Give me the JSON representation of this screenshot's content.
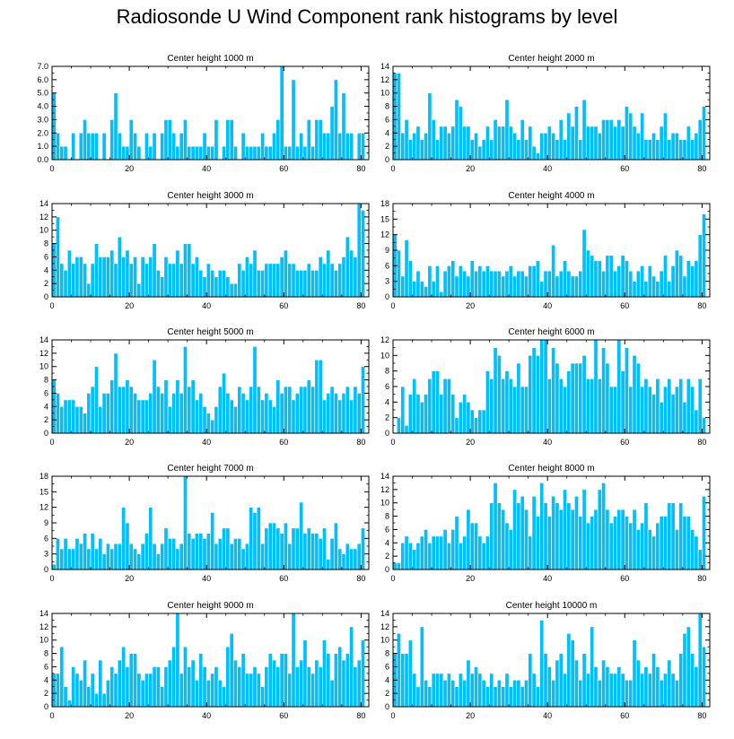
{
  "title": "Radiosonde U Wind Component rank histograms by level",
  "style": {
    "bar_color": "#00bfff",
    "bar_edge": "#ffffff",
    "axis_color": "#000000"
  },
  "chart_data": [
    {
      "type": "bar",
      "title": "Center height 1000 m",
      "xlabel": "",
      "ylabel": "",
      "xlim": [
        0,
        82
      ],
      "ylim": [
        0,
        7
      ],
      "xticks": [
        0,
        20,
        40,
        60,
        80
      ],
      "xtick_labels": [
        "0",
        "20",
        "40",
        "60",
        "80"
      ],
      "yticks": [
        0,
        1,
        2,
        3,
        4,
        5,
        6,
        7
      ],
      "ytick_labels": [
        "0.0",
        "1.0",
        "2.0",
        "3.0",
        "4.0",
        "5.0",
        "6.0",
        "7.0"
      ],
      "values": [
        5,
        2,
        1,
        1,
        0,
        2,
        0,
        2,
        3,
        2,
        2,
        2,
        0,
        2,
        0,
        3,
        5,
        2,
        1,
        1,
        3,
        2,
        1,
        0,
        2,
        1,
        2,
        0,
        2,
        3,
        3,
        2,
        1,
        2,
        3,
        1,
        1,
        1,
        1,
        2,
        1,
        1,
        3,
        0,
        1,
        3,
        3,
        1,
        0,
        2,
        1,
        1,
        1,
        1,
        2,
        1,
        1,
        2,
        3,
        7,
        1,
        1,
        6,
        1,
        2,
        1,
        3,
        1,
        3,
        3,
        2,
        2,
        4,
        6,
        2,
        5,
        2,
        2,
        0,
        2,
        2
      ]
    },
    {
      "type": "bar",
      "title": "Center height 2000 m",
      "xlabel": "",
      "ylabel": "",
      "xlim": [
        0,
        82
      ],
      "ylim": [
        0,
        14
      ],
      "xticks": [
        0,
        20,
        40,
        60,
        80
      ],
      "xtick_labels": [
        "0",
        "20",
        "40",
        "60",
        "80"
      ],
      "yticks": [
        0,
        2,
        4,
        6,
        8,
        10,
        12,
        14
      ],
      "ytick_labels": [
        "0",
        "2",
        "4",
        "6",
        "8",
        "10",
        "12",
        "14"
      ],
      "values": [
        13,
        13,
        4,
        6,
        3,
        4,
        5,
        3,
        4,
        10,
        6,
        3,
        5,
        5,
        4,
        5,
        9,
        8,
        5,
        5,
        3,
        4,
        2,
        3,
        5,
        3,
        6,
        5,
        5,
        9,
        5,
        4,
        3,
        6,
        3,
        5,
        2,
        1,
        4,
        4,
        5,
        4,
        3,
        6,
        3,
        7,
        5,
        8,
        3,
        9,
        5,
        5,
        5,
        4,
        6,
        6,
        6,
        5,
        6,
        5,
        8,
        7,
        5,
        4,
        7,
        3,
        3,
        4,
        3,
        5,
        7,
        3,
        4,
        4,
        3,
        3,
        5,
        3,
        4,
        6,
        8
      ]
    },
    {
      "type": "bar",
      "title": "Center height 3000 m",
      "xlabel": "",
      "ylabel": "",
      "xlim": [
        0,
        82
      ],
      "ylim": [
        0,
        14
      ],
      "xticks": [
        0,
        20,
        40,
        60,
        80
      ],
      "xtick_labels": [
        "0",
        "20",
        "40",
        "60",
        "80"
      ],
      "yticks": [
        0,
        2,
        4,
        6,
        8,
        10,
        12,
        14
      ],
      "ytick_labels": [
        "0",
        "2",
        "4",
        "6",
        "8",
        "10",
        "12",
        "14"
      ],
      "values": [
        8,
        12,
        5,
        4,
        7,
        5,
        6,
        6,
        5,
        2,
        5,
        8,
        6,
        6,
        6,
        7,
        5,
        9,
        6,
        7,
        5,
        6,
        2,
        6,
        5,
        6,
        8,
        4,
        3,
        6,
        5,
        5,
        7,
        5,
        8,
        8,
        5,
        6,
        4,
        3,
        5,
        4,
        3,
        4,
        4,
        3,
        2,
        2,
        5,
        4,
        6,
        5,
        7,
        4,
        4,
        5,
        5,
        5,
        5,
        6,
        7,
        5,
        5,
        4,
        4,
        4,
        5,
        4,
        4,
        6,
        5,
        7,
        5,
        4,
        5,
        6,
        9,
        7,
        6,
        14,
        13
      ]
    },
    {
      "type": "bar",
      "title": "Center height 4000 m",
      "xlabel": "",
      "ylabel": "",
      "xlim": [
        0,
        82
      ],
      "ylim": [
        0,
        18
      ],
      "xticks": [
        0,
        20,
        40,
        60,
        80
      ],
      "xtick_labels": [
        "0",
        "20",
        "40",
        "60",
        "80"
      ],
      "yticks": [
        0,
        3,
        6,
        9,
        12,
        15,
        18
      ],
      "ytick_labels": [
        "0",
        "3",
        "6",
        "9",
        "12",
        "15",
        "18"
      ],
      "values": [
        12,
        9,
        4,
        11,
        7,
        3,
        5,
        3,
        2,
        6,
        3,
        6,
        1,
        5,
        6,
        7,
        4,
        6,
        5,
        4,
        7,
        5,
        6,
        5,
        6,
        5,
        5,
        5,
        4,
        5,
        6,
        4,
        5,
        5,
        4,
        6,
        6,
        7,
        3,
        5,
        5,
        10,
        4,
        5,
        7,
        5,
        4,
        4,
        5,
        13,
        9,
        8,
        7,
        7,
        5,
        8,
        8,
        5,
        6,
        8,
        7,
        5,
        3,
        5,
        6,
        3,
        6,
        4,
        3,
        5,
        8,
        3,
        6,
        9,
        8,
        4,
        7,
        6,
        7,
        12,
        16
      ]
    },
    {
      "type": "bar",
      "title": "Center height 5000 m",
      "xlabel": "",
      "ylabel": "",
      "xlim": [
        0,
        82
      ],
      "ylim": [
        0,
        14
      ],
      "xticks": [
        0,
        20,
        40,
        60,
        80
      ],
      "xtick_labels": [
        "0",
        "20",
        "40",
        "60",
        "80"
      ],
      "yticks": [
        0,
        2,
        4,
        6,
        8,
        10,
        12,
        14
      ],
      "ytick_labels": [
        "0",
        "2",
        "4",
        "6",
        "8",
        "10",
        "12",
        "14"
      ],
      "values": [
        8,
        6,
        4,
        5,
        5,
        5,
        4,
        4,
        3,
        6,
        7,
        10,
        4,
        6,
        6,
        8,
        12,
        7,
        7,
        8,
        7,
        6,
        5,
        5,
        5,
        6,
        11,
        7,
        6,
        8,
        4,
        6,
        8,
        6,
        13,
        7,
        8,
        5,
        6,
        4,
        3,
        2,
        4,
        7,
        9,
        6,
        5,
        4,
        7,
        6,
        5,
        7,
        13,
        7,
        5,
        6,
        5,
        4,
        8,
        6,
        7,
        7,
        5,
        6,
        7,
        7,
        8,
        7,
        11,
        11,
        5,
        6,
        7,
        6,
        5,
        6,
        7,
        5,
        7,
        6,
        10
      ]
    },
    {
      "type": "bar",
      "title": "Center height 6000 m",
      "xlabel": "",
      "ylabel": "",
      "xlim": [
        0,
        82
      ],
      "ylim": [
        0,
        12
      ],
      "xticks": [
        0,
        20,
        40,
        60,
        80
      ],
      "xtick_labels": [
        "0",
        "20",
        "40",
        "60",
        "80"
      ],
      "yticks": [
        0,
        2,
        4,
        6,
        8,
        10,
        12
      ],
      "ytick_labels": [
        "0",
        "2",
        "4",
        "6",
        "8",
        "10",
        "12"
      ],
      "values": [
        0,
        2,
        6,
        1,
        5,
        7,
        5,
        4,
        5,
        7,
        8,
        8,
        5,
        7,
        7,
        5,
        2,
        4,
        5,
        4,
        3,
        2,
        3,
        3,
        8,
        7,
        11,
        10,
        7,
        8,
        7,
        6,
        9,
        6,
        6,
        10,
        11,
        10,
        12,
        12,
        7,
        11,
        9,
        7,
        6,
        8,
        9,
        9,
        9,
        10,
        7,
        7,
        12,
        7,
        11,
        9,
        6,
        6,
        12,
        8,
        11,
        6,
        10,
        9,
        6,
        7,
        6,
        5,
        7,
        4,
        6,
        7,
        5,
        6,
        7,
        4,
        7,
        6,
        3,
        7,
        2
      ]
    },
    {
      "type": "bar",
      "title": "Center height 7000 m",
      "xlabel": "",
      "ylabel": "",
      "xlim": [
        0,
        82
      ],
      "ylim": [
        0,
        18
      ],
      "xticks": [
        0,
        20,
        40,
        60,
        80
      ],
      "xtick_labels": [
        "0",
        "20",
        "40",
        "60",
        "80"
      ],
      "yticks": [
        0,
        3,
        6,
        9,
        12,
        15,
        18
      ],
      "ytick_labels": [
        "0",
        "3",
        "6",
        "9",
        "12",
        "15",
        "18"
      ],
      "values": [
        1,
        6,
        4,
        6,
        4,
        4,
        6,
        5,
        7,
        4,
        7,
        4,
        6,
        3,
        5,
        4,
        5,
        5,
        12,
        9,
        5,
        4,
        3,
        5,
        7,
        12,
        5,
        3,
        5,
        8,
        6,
        6,
        4,
        5,
        18,
        7,
        6,
        7,
        7,
        6,
        7,
        11,
        5,
        6,
        8,
        8,
        5,
        6,
        6,
        4,
        5,
        12,
        11,
        12,
        5,
        8,
        9,
        9,
        8,
        7,
        9,
        5,
        8,
        8,
        13,
        7,
        8,
        7,
        7,
        6,
        8,
        2,
        6,
        9,
        4,
        3,
        5,
        4,
        4,
        5,
        8
      ]
    },
    {
      "type": "bar",
      "title": "Center height 8000 m",
      "xlabel": "",
      "ylabel": "",
      "xlim": [
        0,
        82
      ],
      "ylim": [
        0,
        14
      ],
      "xticks": [
        0,
        20,
        40,
        60,
        80
      ],
      "xtick_labels": [
        "0",
        "20",
        "40",
        "60",
        "80"
      ],
      "yticks": [
        0,
        2,
        4,
        6,
        8,
        10,
        12,
        14
      ],
      "ytick_labels": [
        "0",
        "2",
        "4",
        "6",
        "8",
        "10",
        "12",
        "14"
      ],
      "values": [
        1,
        1,
        4,
        5,
        4,
        3,
        4,
        5,
        6,
        4,
        5,
        5,
        5,
        6,
        4,
        6,
        8,
        4,
        5,
        9,
        7,
        7,
        5,
        4,
        5,
        10,
        13,
        10,
        9,
        7,
        6,
        12,
        10,
        11,
        9,
        5,
        11,
        8,
        13,
        10,
        8,
        11,
        10,
        9,
        12,
        10,
        9,
        11,
        8,
        12,
        7,
        8,
        9,
        12,
        13,
        9,
        7,
        8,
        9,
        9,
        8,
        7,
        9,
        6,
        7,
        10,
        6,
        5,
        7,
        8,
        8,
        10,
        10,
        6,
        10,
        8,
        8,
        6,
        5,
        3,
        11
      ]
    },
    {
      "type": "bar",
      "title": "Center height 9000 m",
      "xlabel": "",
      "ylabel": "",
      "xlim": [
        0,
        82
      ],
      "ylim": [
        0,
        14
      ],
      "xticks": [
        0,
        20,
        40,
        60,
        80
      ],
      "xtick_labels": [
        "0",
        "20",
        "40",
        "60",
        "80"
      ],
      "yticks": [
        0,
        2,
        4,
        6,
        8,
        10,
        12,
        14
      ],
      "ytick_labels": [
        "0",
        "2",
        "4",
        "6",
        "8",
        "10",
        "12",
        "14"
      ],
      "values": [
        5,
        5,
        9,
        3,
        1,
        6,
        5,
        4,
        7,
        3,
        5,
        2,
        7,
        2,
        4,
        6,
        5,
        7,
        9,
        6,
        8,
        8,
        5,
        4,
        5,
        5,
        6,
        6,
        3,
        6,
        7,
        9,
        14,
        5,
        9,
        6,
        7,
        4,
        8,
        6,
        4,
        5,
        6,
        4,
        3,
        9,
        11,
        7,
        6,
        8,
        5,
        5,
        6,
        5,
        3,
        6,
        8,
        7,
        6,
        8,
        8,
        5,
        14,
        6,
        7,
        10,
        6,
        5,
        7,
        6,
        10,
        8,
        4,
        8,
        9,
        7,
        8,
        12,
        6,
        7,
        10
      ]
    },
    {
      "type": "bar",
      "title": "Center height 10000 m",
      "xlabel": "",
      "ylabel": "",
      "xlim": [
        0,
        82
      ],
      "ylim": [
        0,
        14
      ],
      "xticks": [
        0,
        20,
        40,
        60,
        80
      ],
      "xtick_labels": [
        "0",
        "20",
        "40",
        "60",
        "80"
      ],
      "yticks": [
        0,
        2,
        4,
        6,
        8,
        10,
        12,
        14
      ],
      "ytick_labels": [
        "0",
        "2",
        "4",
        "6",
        "8",
        "10",
        "12",
        "14"
      ],
      "values": [
        8,
        11,
        8,
        8,
        10,
        5,
        3,
        12,
        4,
        3,
        5,
        5,
        5,
        4,
        5,
        4,
        3,
        5,
        4,
        7,
        5,
        6,
        5,
        4,
        3,
        5,
        3,
        4,
        3,
        5,
        3,
        4,
        4,
        3,
        4,
        8,
        5,
        3,
        13,
        8,
        6,
        4,
        7,
        8,
        5,
        11,
        10,
        7,
        4,
        8,
        5,
        12,
        6,
        4,
        7,
        6,
        5,
        5,
        6,
        5,
        4,
        4,
        10,
        7,
        5,
        6,
        5,
        8,
        6,
        4,
        5,
        7,
        5,
        4,
        8,
        11,
        12,
        8,
        6,
        14,
        9
      ]
    }
  ]
}
